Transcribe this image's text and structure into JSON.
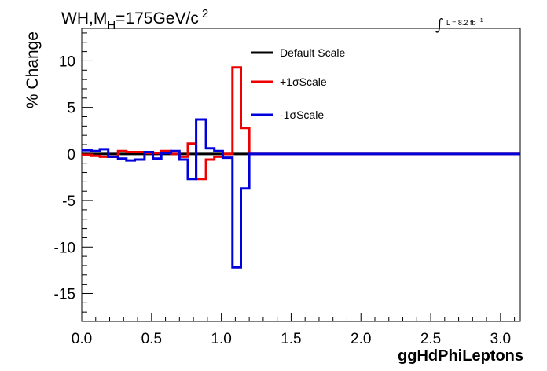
{
  "chart_data": {
    "type": "line",
    "title_main": "WH,M",
    "title_sub": "H",
    "title_rest": "=175GeV/c",
    "title_sup": "2",
    "lumi_label": "L = 8.2 fb",
    "lumi_sup": "-1",
    "lumi_symbol": "∫",
    "xlabel": "ggHdPhiLeptons",
    "ylabel": "% Change",
    "xlim": [
      0,
      3.1416
    ],
    "ylim": [
      -18,
      13.5
    ],
    "x_ticks": [
      0.0,
      0.5,
      1.0,
      1.5,
      2.0,
      2.5,
      3.0
    ],
    "x_tick_labels": [
      "0.0",
      "0.5",
      "1.0",
      "1.5",
      "2.0",
      "2.5",
      "3.0"
    ],
    "y_ticks": [
      10,
      5,
      0,
      -5,
      -10,
      -15
    ],
    "y_tick_labels": [
      "10",
      "5",
      "0",
      "-5",
      "-10",
      "-15"
    ],
    "legend": {
      "position": "top-center"
    },
    "series": [
      {
        "name": "Default Scale",
        "color": "#000000",
        "bin_edges": [
          0,
          3.1416
        ],
        "values": [
          0
        ]
      },
      {
        "name": "+1σScale",
        "color": "#ee0000",
        "bin_edges": [
          0,
          0.07,
          0.13,
          0.26,
          0.32,
          0.45,
          0.57,
          0.64,
          0.7,
          0.76,
          0.82,
          0.89,
          0.95,
          1.01,
          1.08,
          1.14,
          1.2,
          3.1416
        ],
        "values": [
          -0.1,
          -0.2,
          -0.3,
          0.3,
          0.2,
          0.1,
          0.3,
          0.0,
          -0.3,
          1.1,
          -2.7,
          -0.6,
          -0.3,
          0.0,
          9.3,
          2.8,
          0.0
        ]
      },
      {
        "name": "-1σScale",
        "color": "#0000dd",
        "bin_edges": [
          0,
          0.07,
          0.13,
          0.19,
          0.26,
          0.32,
          0.38,
          0.45,
          0.51,
          0.57,
          0.64,
          0.7,
          0.76,
          0.82,
          0.89,
          0.95,
          1.01,
          1.08,
          1.14,
          1.2,
          3.1416
        ],
        "values": [
          0.4,
          0.3,
          0.5,
          -0.3,
          -0.5,
          -0.7,
          -0.6,
          0.2,
          -0.5,
          0.1,
          0.3,
          -0.6,
          -2.7,
          3.7,
          0.6,
          0.3,
          -0.4,
          -12.2,
          -3.7,
          0.0
        ]
      }
    ]
  }
}
